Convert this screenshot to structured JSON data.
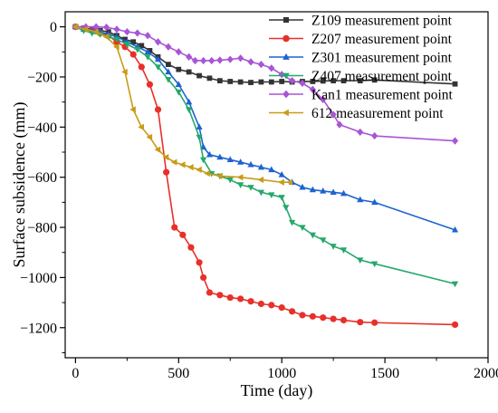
{
  "chart_data": {
    "type": "line",
    "title": "",
    "xlabel": "Time (day)",
    "ylabel": "Surface subsidence (mm)",
    "xlim": [
      -50,
      2000
    ],
    "ylim": [
      -1320,
      60
    ],
    "xticks": [
      0,
      500,
      1000,
      1500,
      2000
    ],
    "yticks": [
      0,
      -200,
      -400,
      -600,
      -800,
      -1000,
      -1200
    ],
    "grid": false,
    "legend_position": "top-right",
    "series": [
      {
        "name": "Z109 measurement point",
        "color": "#333333",
        "marker": "square",
        "points": [
          [
            0,
            0
          ],
          [
            40,
            -5
          ],
          [
            80,
            -10
          ],
          [
            120,
            -15
          ],
          [
            160,
            -20
          ],
          [
            200,
            -35
          ],
          [
            240,
            -50
          ],
          [
            280,
            -60
          ],
          [
            320,
            -75
          ],
          [
            360,
            -95
          ],
          [
            400,
            -120
          ],
          [
            450,
            -150
          ],
          [
            500,
            -170
          ],
          [
            550,
            -180
          ],
          [
            600,
            -195
          ],
          [
            650,
            -205
          ],
          [
            700,
            -215
          ],
          [
            750,
            -218
          ],
          [
            800,
            -220
          ],
          [
            850,
            -222
          ],
          [
            900,
            -220
          ],
          [
            950,
            -220
          ],
          [
            1000,
            -218
          ],
          [
            1050,
            -220
          ],
          [
            1100,
            -218
          ],
          [
            1150,
            -218
          ],
          [
            1200,
            -216
          ],
          [
            1250,
            -215
          ],
          [
            1300,
            -215
          ],
          [
            1380,
            -215
          ],
          [
            1450,
            -212
          ],
          [
            1840,
            -228
          ]
        ]
      },
      {
        "name": "Z207 measurement point",
        "color": "#e8302a",
        "marker": "circle",
        "points": [
          [
            0,
            0
          ],
          [
            40,
            -8
          ],
          [
            80,
            -15
          ],
          [
            120,
            -25
          ],
          [
            160,
            -35
          ],
          [
            200,
            -60
          ],
          [
            240,
            -80
          ],
          [
            280,
            -110
          ],
          [
            320,
            -160
          ],
          [
            360,
            -230
          ],
          [
            400,
            -330
          ],
          [
            440,
            -580
          ],
          [
            480,
            -800
          ],
          [
            520,
            -830
          ],
          [
            560,
            -880
          ],
          [
            600,
            -940
          ],
          [
            620,
            -1000
          ],
          [
            650,
            -1060
          ],
          [
            700,
            -1070
          ],
          [
            750,
            -1080
          ],
          [
            800,
            -1085
          ],
          [
            850,
            -1095
          ],
          [
            900,
            -1105
          ],
          [
            950,
            -1110
          ],
          [
            1000,
            -1120
          ],
          [
            1050,
            -1135
          ],
          [
            1100,
            -1150
          ],
          [
            1150,
            -1155
          ],
          [
            1200,
            -1160
          ],
          [
            1250,
            -1165
          ],
          [
            1300,
            -1170
          ],
          [
            1380,
            -1178
          ],
          [
            1450,
            -1180
          ],
          [
            1840,
            -1188
          ]
        ]
      },
      {
        "name": "Z301 measurement point",
        "color": "#1d63d1",
        "marker": "triangle-up",
        "points": [
          [
            0,
            0
          ],
          [
            40,
            -10
          ],
          [
            80,
            -15
          ],
          [
            120,
            -20
          ],
          [
            160,
            -30
          ],
          [
            200,
            -40
          ],
          [
            250,
            -60
          ],
          [
            300,
            -80
          ],
          [
            350,
            -100
          ],
          [
            400,
            -130
          ],
          [
            450,
            -180
          ],
          [
            500,
            -230
          ],
          [
            550,
            -300
          ],
          [
            600,
            -400
          ],
          [
            620,
            -480
          ],
          [
            650,
            -510
          ],
          [
            700,
            -520
          ],
          [
            750,
            -530
          ],
          [
            800,
            -540
          ],
          [
            850,
            -550
          ],
          [
            900,
            -560
          ],
          [
            950,
            -570
          ],
          [
            1000,
            -590
          ],
          [
            1050,
            -620
          ],
          [
            1100,
            -640
          ],
          [
            1150,
            -650
          ],
          [
            1200,
            -655
          ],
          [
            1250,
            -660
          ],
          [
            1300,
            -665
          ],
          [
            1380,
            -690
          ],
          [
            1450,
            -700
          ],
          [
            1840,
            -810
          ]
        ]
      },
      {
        "name": "Z407 measurement point",
        "color": "#25a86a",
        "marker": "triangle-down",
        "points": [
          [
            0,
            0
          ],
          [
            40,
            -15
          ],
          [
            80,
            -25
          ],
          [
            120,
            -30
          ],
          [
            160,
            -40
          ],
          [
            200,
            -50
          ],
          [
            250,
            -70
          ],
          [
            300,
            -90
          ],
          [
            350,
            -120
          ],
          [
            400,
            -160
          ],
          [
            450,
            -210
          ],
          [
            500,
            -260
          ],
          [
            550,
            -330
          ],
          [
            600,
            -440
          ],
          [
            620,
            -530
          ],
          [
            660,
            -585
          ],
          [
            700,
            -595
          ],
          [
            750,
            -610
          ],
          [
            800,
            -630
          ],
          [
            850,
            -640
          ],
          [
            900,
            -660
          ],
          [
            950,
            -670
          ],
          [
            1000,
            -680
          ],
          [
            1020,
            -720
          ],
          [
            1050,
            -780
          ],
          [
            1100,
            -800
          ],
          [
            1150,
            -830
          ],
          [
            1200,
            -850
          ],
          [
            1250,
            -875
          ],
          [
            1300,
            -890
          ],
          [
            1380,
            -930
          ],
          [
            1450,
            -945
          ],
          [
            1840,
            -1025
          ]
        ]
      },
      {
        "name": "Kan1 measurement point",
        "color": "#a855d6",
        "marker": "diamond",
        "points": [
          [
            0,
            0
          ],
          [
            50,
            0
          ],
          [
            100,
            0
          ],
          [
            150,
            -2
          ],
          [
            200,
            -10
          ],
          [
            250,
            -20
          ],
          [
            300,
            -25
          ],
          [
            350,
            -35
          ],
          [
            400,
            -60
          ],
          [
            450,
            -80
          ],
          [
            500,
            -100
          ],
          [
            550,
            -120
          ],
          [
            580,
            -135
          ],
          [
            620,
            -135
          ],
          [
            660,
            -135
          ],
          [
            700,
            -133
          ],
          [
            750,
            -130
          ],
          [
            800,
            -125
          ],
          [
            850,
            -140
          ],
          [
            900,
            -150
          ],
          [
            950,
            -165
          ],
          [
            1000,
            -190
          ],
          [
            1050,
            -215
          ],
          [
            1100,
            -225
          ],
          [
            1150,
            -250
          ],
          [
            1200,
            -290
          ],
          [
            1250,
            -350
          ],
          [
            1280,
            -390
          ],
          [
            1380,
            -420
          ],
          [
            1450,
            -435
          ],
          [
            1840,
            -455
          ]
        ]
      },
      {
        "name": "612 measurement point",
        "color": "#c89c17",
        "marker": "triangle-left",
        "points": [
          [
            0,
            0
          ],
          [
            50,
            -10
          ],
          [
            100,
            -20
          ],
          [
            150,
            -40
          ],
          [
            200,
            -80
          ],
          [
            240,
            -180
          ],
          [
            280,
            -330
          ],
          [
            320,
            -400
          ],
          [
            360,
            -440
          ],
          [
            400,
            -490
          ],
          [
            440,
            -520
          ],
          [
            480,
            -540
          ],
          [
            520,
            -550
          ],
          [
            560,
            -560
          ],
          [
            600,
            -570
          ],
          [
            640,
            -585
          ],
          [
            700,
            -595
          ],
          [
            800,
            -600
          ],
          [
            900,
            -610
          ],
          [
            1000,
            -620
          ],
          [
            1040,
            -620
          ]
        ]
      }
    ]
  }
}
